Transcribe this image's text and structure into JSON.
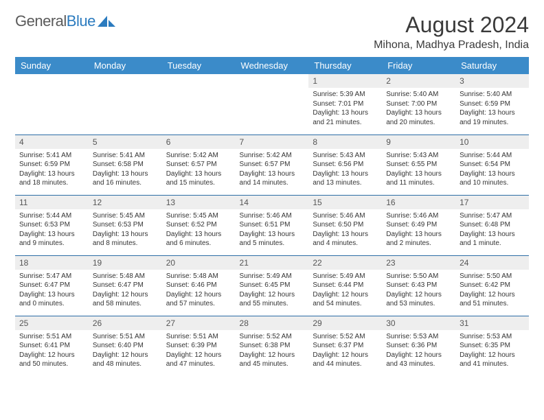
{
  "logo": {
    "text1": "General",
    "text2": "Blue"
  },
  "title": "August 2024",
  "location": "Mihona, Madhya Pradesh, India",
  "colors": {
    "header_bg": "#3b8bc9",
    "header_text": "#ffffff",
    "daynum_bg": "#eeeeee",
    "row_border": "#2b6ca5",
    "logo_gray": "#5a5a5a",
    "logo_blue": "#2b7bbf"
  },
  "weekdays": [
    "Sunday",
    "Monday",
    "Tuesday",
    "Wednesday",
    "Thursday",
    "Friday",
    "Saturday"
  ],
  "first_weekday_index": 4,
  "days": [
    {
      "n": "1",
      "sr": "5:39 AM",
      "ss": "7:01 PM",
      "dl": "13 hours and 21 minutes."
    },
    {
      "n": "2",
      "sr": "5:40 AM",
      "ss": "7:00 PM",
      "dl": "13 hours and 20 minutes."
    },
    {
      "n": "3",
      "sr": "5:40 AM",
      "ss": "6:59 PM",
      "dl": "13 hours and 19 minutes."
    },
    {
      "n": "4",
      "sr": "5:41 AM",
      "ss": "6:59 PM",
      "dl": "13 hours and 18 minutes."
    },
    {
      "n": "5",
      "sr": "5:41 AM",
      "ss": "6:58 PM",
      "dl": "13 hours and 16 minutes."
    },
    {
      "n": "6",
      "sr": "5:42 AM",
      "ss": "6:57 PM",
      "dl": "13 hours and 15 minutes."
    },
    {
      "n": "7",
      "sr": "5:42 AM",
      "ss": "6:57 PM",
      "dl": "13 hours and 14 minutes."
    },
    {
      "n": "8",
      "sr": "5:43 AM",
      "ss": "6:56 PM",
      "dl": "13 hours and 13 minutes."
    },
    {
      "n": "9",
      "sr": "5:43 AM",
      "ss": "6:55 PM",
      "dl": "13 hours and 11 minutes."
    },
    {
      "n": "10",
      "sr": "5:44 AM",
      "ss": "6:54 PM",
      "dl": "13 hours and 10 minutes."
    },
    {
      "n": "11",
      "sr": "5:44 AM",
      "ss": "6:53 PM",
      "dl": "13 hours and 9 minutes."
    },
    {
      "n": "12",
      "sr": "5:45 AM",
      "ss": "6:53 PM",
      "dl": "13 hours and 8 minutes."
    },
    {
      "n": "13",
      "sr": "5:45 AM",
      "ss": "6:52 PM",
      "dl": "13 hours and 6 minutes."
    },
    {
      "n": "14",
      "sr": "5:46 AM",
      "ss": "6:51 PM",
      "dl": "13 hours and 5 minutes."
    },
    {
      "n": "15",
      "sr": "5:46 AM",
      "ss": "6:50 PM",
      "dl": "13 hours and 4 minutes."
    },
    {
      "n": "16",
      "sr": "5:46 AM",
      "ss": "6:49 PM",
      "dl": "13 hours and 2 minutes."
    },
    {
      "n": "17",
      "sr": "5:47 AM",
      "ss": "6:48 PM",
      "dl": "13 hours and 1 minute."
    },
    {
      "n": "18",
      "sr": "5:47 AM",
      "ss": "6:47 PM",
      "dl": "13 hours and 0 minutes."
    },
    {
      "n": "19",
      "sr": "5:48 AM",
      "ss": "6:47 PM",
      "dl": "12 hours and 58 minutes."
    },
    {
      "n": "20",
      "sr": "5:48 AM",
      "ss": "6:46 PM",
      "dl": "12 hours and 57 minutes."
    },
    {
      "n": "21",
      "sr": "5:49 AM",
      "ss": "6:45 PM",
      "dl": "12 hours and 55 minutes."
    },
    {
      "n": "22",
      "sr": "5:49 AM",
      "ss": "6:44 PM",
      "dl": "12 hours and 54 minutes."
    },
    {
      "n": "23",
      "sr": "5:50 AM",
      "ss": "6:43 PM",
      "dl": "12 hours and 53 minutes."
    },
    {
      "n": "24",
      "sr": "5:50 AM",
      "ss": "6:42 PM",
      "dl": "12 hours and 51 minutes."
    },
    {
      "n": "25",
      "sr": "5:51 AM",
      "ss": "6:41 PM",
      "dl": "12 hours and 50 minutes."
    },
    {
      "n": "26",
      "sr": "5:51 AM",
      "ss": "6:40 PM",
      "dl": "12 hours and 48 minutes."
    },
    {
      "n": "27",
      "sr": "5:51 AM",
      "ss": "6:39 PM",
      "dl": "12 hours and 47 minutes."
    },
    {
      "n": "28",
      "sr": "5:52 AM",
      "ss": "6:38 PM",
      "dl": "12 hours and 45 minutes."
    },
    {
      "n": "29",
      "sr": "5:52 AM",
      "ss": "6:37 PM",
      "dl": "12 hours and 44 minutes."
    },
    {
      "n": "30",
      "sr": "5:53 AM",
      "ss": "6:36 PM",
      "dl": "12 hours and 43 minutes."
    },
    {
      "n": "31",
      "sr": "5:53 AM",
      "ss": "6:35 PM",
      "dl": "12 hours and 41 minutes."
    }
  ],
  "labels": {
    "sunrise": "Sunrise:",
    "sunset": "Sunset:",
    "daylight": "Daylight:"
  }
}
